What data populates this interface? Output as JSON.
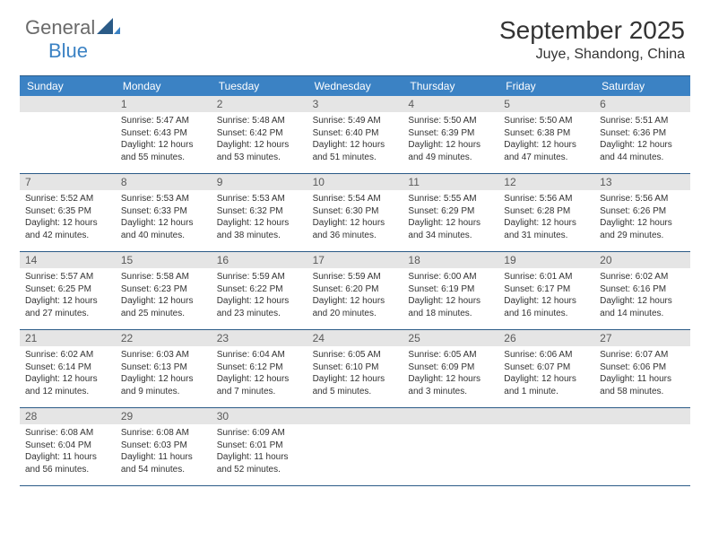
{
  "logo": {
    "general": "General",
    "blue": "Blue"
  },
  "title": "September 2025",
  "location": "Juye, Shandong, China",
  "colors": {
    "header_bg": "#3b82c4",
    "border": "#2b5b87",
    "day_bar": "#e5e5e5",
    "logo_gray": "#6a6a6a",
    "logo_blue": "#3b82c4"
  },
  "weekdays": [
    "Sunday",
    "Monday",
    "Tuesday",
    "Wednesday",
    "Thursday",
    "Friday",
    "Saturday"
  ],
  "weeks": [
    [
      {
        "n": "",
        "sr": "",
        "ss": "",
        "dl": ""
      },
      {
        "n": "1",
        "sr": "Sunrise: 5:47 AM",
        "ss": "Sunset: 6:43 PM",
        "dl": "Daylight: 12 hours and 55 minutes."
      },
      {
        "n": "2",
        "sr": "Sunrise: 5:48 AM",
        "ss": "Sunset: 6:42 PM",
        "dl": "Daylight: 12 hours and 53 minutes."
      },
      {
        "n": "3",
        "sr": "Sunrise: 5:49 AM",
        "ss": "Sunset: 6:40 PM",
        "dl": "Daylight: 12 hours and 51 minutes."
      },
      {
        "n": "4",
        "sr": "Sunrise: 5:50 AM",
        "ss": "Sunset: 6:39 PM",
        "dl": "Daylight: 12 hours and 49 minutes."
      },
      {
        "n": "5",
        "sr": "Sunrise: 5:50 AM",
        "ss": "Sunset: 6:38 PM",
        "dl": "Daylight: 12 hours and 47 minutes."
      },
      {
        "n": "6",
        "sr": "Sunrise: 5:51 AM",
        "ss": "Sunset: 6:36 PM",
        "dl": "Daylight: 12 hours and 44 minutes."
      }
    ],
    [
      {
        "n": "7",
        "sr": "Sunrise: 5:52 AM",
        "ss": "Sunset: 6:35 PM",
        "dl": "Daylight: 12 hours and 42 minutes."
      },
      {
        "n": "8",
        "sr": "Sunrise: 5:53 AM",
        "ss": "Sunset: 6:33 PM",
        "dl": "Daylight: 12 hours and 40 minutes."
      },
      {
        "n": "9",
        "sr": "Sunrise: 5:53 AM",
        "ss": "Sunset: 6:32 PM",
        "dl": "Daylight: 12 hours and 38 minutes."
      },
      {
        "n": "10",
        "sr": "Sunrise: 5:54 AM",
        "ss": "Sunset: 6:30 PM",
        "dl": "Daylight: 12 hours and 36 minutes."
      },
      {
        "n": "11",
        "sr": "Sunrise: 5:55 AM",
        "ss": "Sunset: 6:29 PM",
        "dl": "Daylight: 12 hours and 34 minutes."
      },
      {
        "n": "12",
        "sr": "Sunrise: 5:56 AM",
        "ss": "Sunset: 6:28 PM",
        "dl": "Daylight: 12 hours and 31 minutes."
      },
      {
        "n": "13",
        "sr": "Sunrise: 5:56 AM",
        "ss": "Sunset: 6:26 PM",
        "dl": "Daylight: 12 hours and 29 minutes."
      }
    ],
    [
      {
        "n": "14",
        "sr": "Sunrise: 5:57 AM",
        "ss": "Sunset: 6:25 PM",
        "dl": "Daylight: 12 hours and 27 minutes."
      },
      {
        "n": "15",
        "sr": "Sunrise: 5:58 AM",
        "ss": "Sunset: 6:23 PM",
        "dl": "Daylight: 12 hours and 25 minutes."
      },
      {
        "n": "16",
        "sr": "Sunrise: 5:59 AM",
        "ss": "Sunset: 6:22 PM",
        "dl": "Daylight: 12 hours and 23 minutes."
      },
      {
        "n": "17",
        "sr": "Sunrise: 5:59 AM",
        "ss": "Sunset: 6:20 PM",
        "dl": "Daylight: 12 hours and 20 minutes."
      },
      {
        "n": "18",
        "sr": "Sunrise: 6:00 AM",
        "ss": "Sunset: 6:19 PM",
        "dl": "Daylight: 12 hours and 18 minutes."
      },
      {
        "n": "19",
        "sr": "Sunrise: 6:01 AM",
        "ss": "Sunset: 6:17 PM",
        "dl": "Daylight: 12 hours and 16 minutes."
      },
      {
        "n": "20",
        "sr": "Sunrise: 6:02 AM",
        "ss": "Sunset: 6:16 PM",
        "dl": "Daylight: 12 hours and 14 minutes."
      }
    ],
    [
      {
        "n": "21",
        "sr": "Sunrise: 6:02 AM",
        "ss": "Sunset: 6:14 PM",
        "dl": "Daylight: 12 hours and 12 minutes."
      },
      {
        "n": "22",
        "sr": "Sunrise: 6:03 AM",
        "ss": "Sunset: 6:13 PM",
        "dl": "Daylight: 12 hours and 9 minutes."
      },
      {
        "n": "23",
        "sr": "Sunrise: 6:04 AM",
        "ss": "Sunset: 6:12 PM",
        "dl": "Daylight: 12 hours and 7 minutes."
      },
      {
        "n": "24",
        "sr": "Sunrise: 6:05 AM",
        "ss": "Sunset: 6:10 PM",
        "dl": "Daylight: 12 hours and 5 minutes."
      },
      {
        "n": "25",
        "sr": "Sunrise: 6:05 AM",
        "ss": "Sunset: 6:09 PM",
        "dl": "Daylight: 12 hours and 3 minutes."
      },
      {
        "n": "26",
        "sr": "Sunrise: 6:06 AM",
        "ss": "Sunset: 6:07 PM",
        "dl": "Daylight: 12 hours and 1 minute."
      },
      {
        "n": "27",
        "sr": "Sunrise: 6:07 AM",
        "ss": "Sunset: 6:06 PM",
        "dl": "Daylight: 11 hours and 58 minutes."
      }
    ],
    [
      {
        "n": "28",
        "sr": "Sunrise: 6:08 AM",
        "ss": "Sunset: 6:04 PM",
        "dl": "Daylight: 11 hours and 56 minutes."
      },
      {
        "n": "29",
        "sr": "Sunrise: 6:08 AM",
        "ss": "Sunset: 6:03 PM",
        "dl": "Daylight: 11 hours and 54 minutes."
      },
      {
        "n": "30",
        "sr": "Sunrise: 6:09 AM",
        "ss": "Sunset: 6:01 PM",
        "dl": "Daylight: 11 hours and 52 minutes."
      },
      {
        "n": "",
        "sr": "",
        "ss": "",
        "dl": ""
      },
      {
        "n": "",
        "sr": "",
        "ss": "",
        "dl": ""
      },
      {
        "n": "",
        "sr": "",
        "ss": "",
        "dl": ""
      },
      {
        "n": "",
        "sr": "",
        "ss": "",
        "dl": ""
      }
    ]
  ]
}
